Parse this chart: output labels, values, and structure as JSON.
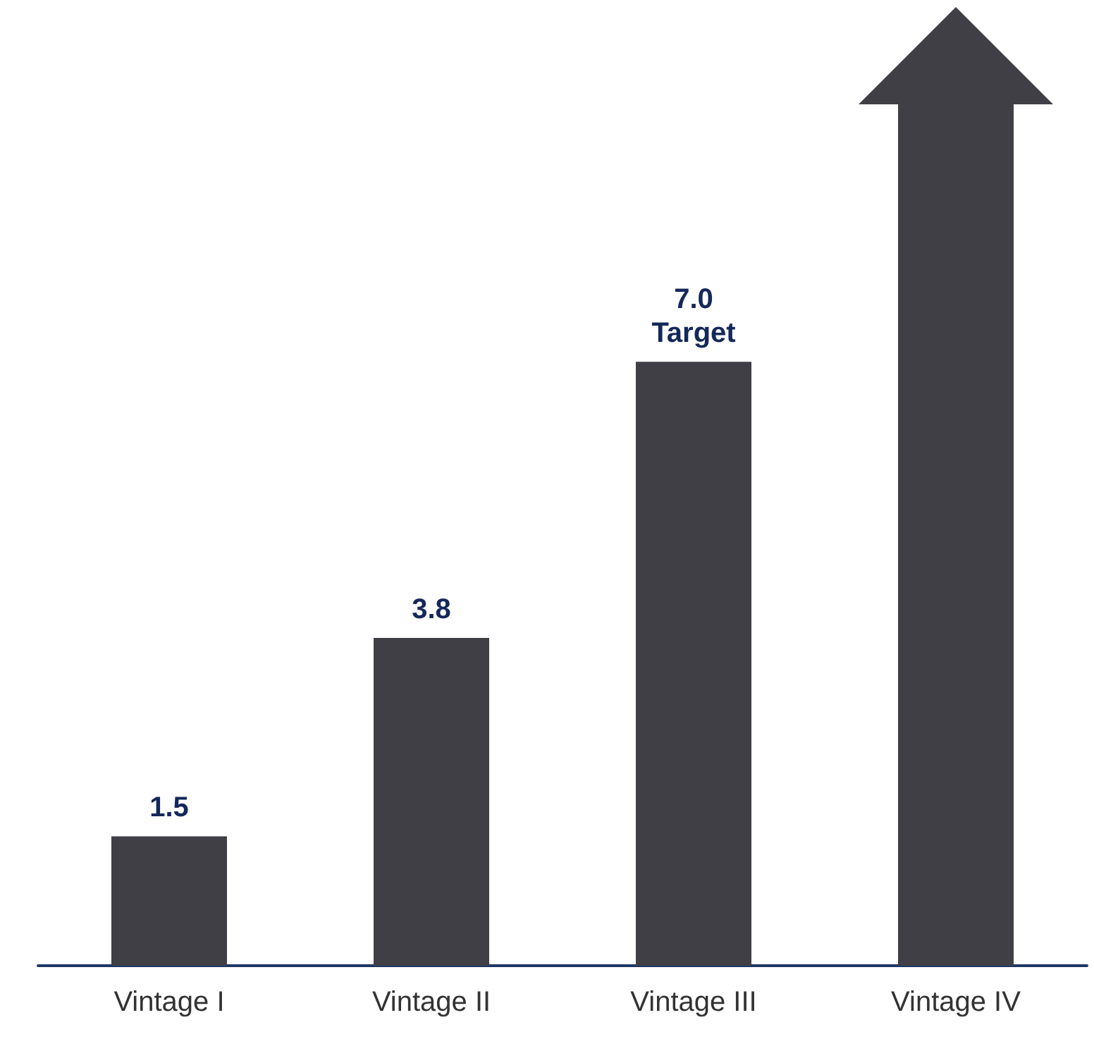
{
  "chart_data": {
    "type": "bar",
    "categories": [
      "Vintage I",
      "Vintage II",
      "Vintage III",
      "Vintage IV"
    ],
    "values": [
      1.5,
      3.8,
      7.0,
      10.0
    ],
    "color": "#3f3f45",
    "value_labels": [
      "1.5",
      "3.8",
      "7.0",
      null
    ],
    "annotations": [
      {
        "text": "Target",
        "x": "Vintage III",
        "y": 7.0
      }
    ]
  }
}
